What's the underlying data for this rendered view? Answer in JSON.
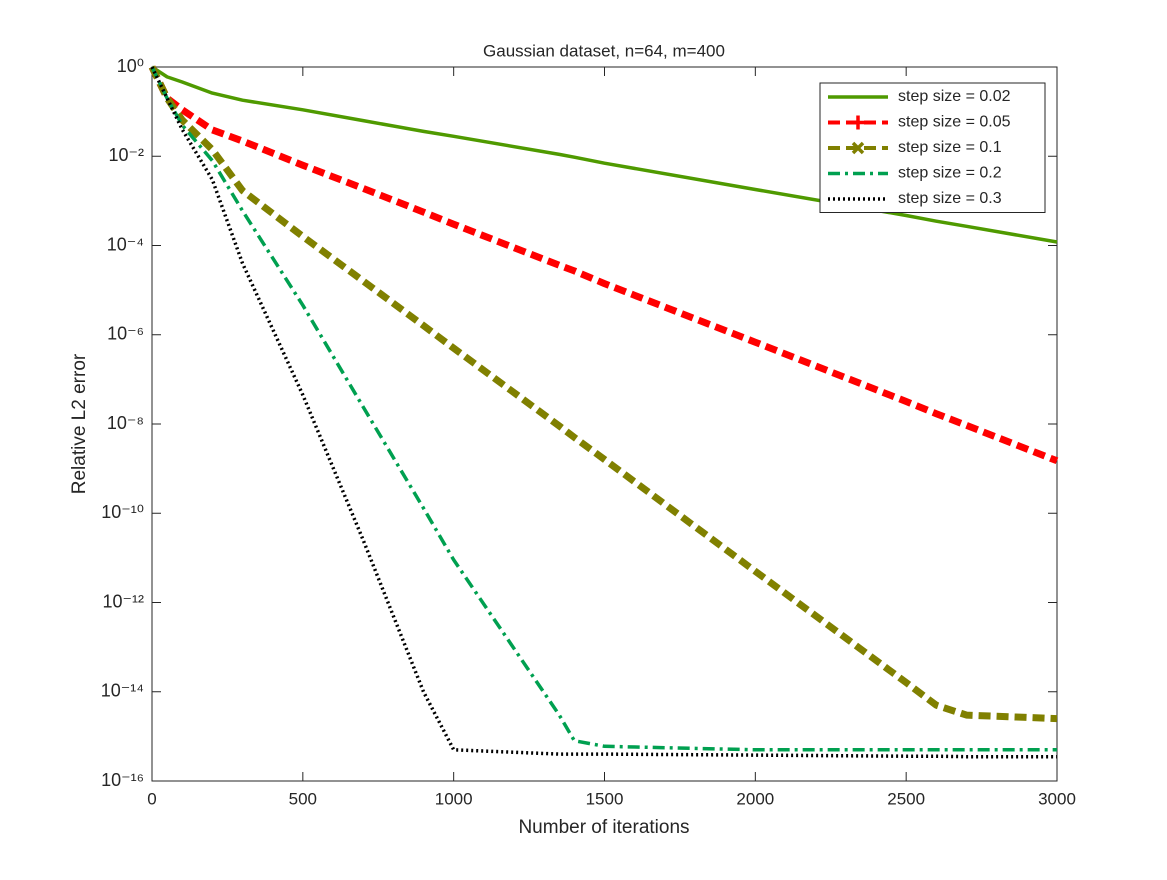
{
  "chart_data": {
    "type": "line",
    "title": "Gaussian dataset, n=64, m=400",
    "x_label": "Number of iterations",
    "y_label": "Relative L2 error",
    "yscale": "log",
    "legend": "upper right",
    "x": [
      0,
      50,
      100,
      200,
      300,
      500,
      700,
      900,
      1000,
      1350,
      1400,
      1500,
      2000,
      2500,
      2600,
      2700,
      3000
    ],
    "xlim": [
      0,
      3000
    ],
    "xticks": [
      0,
      500,
      1000,
      1500,
      2000,
      2500,
      3000
    ],
    "ylim": [
      1e-16,
      1
    ],
    "yticks": [
      {
        "value": 1,
        "label": "10⁰"
      },
      {
        "value": 0.01,
        "label": "10⁻²"
      },
      {
        "value": 0.0001,
        "label": "10⁻⁴"
      },
      {
        "value": 1e-06,
        "label": "10⁻⁶"
      },
      {
        "value": 1e-08,
        "label": "10⁻⁸"
      },
      {
        "value": 1e-10,
        "label": "10⁻¹⁰"
      },
      {
        "value": 1e-12,
        "label": "10⁻¹²"
      },
      {
        "value": 1e-14,
        "label": "10⁻¹⁴"
      },
      {
        "value": 1e-16,
        "label": "10⁻¹⁶"
      }
    ],
    "series": [
      {
        "name": "step size = 0.02",
        "color": "#4f9a00",
        "style": "solid",
        "values": [
          1,
          0.6,
          0.46,
          0.26,
          0.18,
          0.11,
          0.063,
          0.036,
          0.028,
          0.011,
          0.0095,
          0.007,
          0.0018,
          0.00047,
          0.00035,
          0.00027,
          0.00012
        ]
      },
      {
        "name": "step size = 0.05",
        "color": "#ff0000",
        "style": "dashed",
        "marker": "+",
        "values": [
          1,
          0.2,
          0.11,
          0.039,
          0.022,
          0.0063,
          0.0019,
          0.00056,
          0.0003,
          3.6e-05,
          2.7e-05,
          1.4e-05,
          6.8e-07,
          3.2e-08,
          1.7e-08,
          9.3e-09,
          1.5e-09
        ]
      },
      {
        "name": "step size = 0.1",
        "color": "#808000",
        "style": "dashed",
        "marker": "x",
        "values": [
          1,
          0.2,
          0.065,
          0.014,
          0.0017,
          0.00016,
          1.6e-05,
          1.6e-06,
          5e-07,
          9e-09,
          5e-09,
          1.6e-09,
          5e-12,
          1.6e-14,
          5e-15,
          3e-15,
          2.5e-15
        ]
      },
      {
        "name": "step size = 0.2",
        "color": "#00a050",
        "style": "dashdot",
        "values": [
          1,
          0.2,
          0.05,
          0.008,
          0.0006,
          4.6e-06,
          2.4e-08,
          1.3e-10,
          9e-12,
          3e-15,
          8e-16,
          6e-16,
          5e-16,
          5e-16,
          5e-16,
          5e-16,
          5e-16
        ]
      },
      {
        "name": "step size = 0.3",
        "color": "#000000",
        "style": "dotted",
        "values": [
          1,
          0.2,
          0.04,
          0.003,
          4e-05,
          4.5e-08,
          2.5e-11,
          1e-14,
          5e-16,
          4e-16,
          4e-16,
          4e-16,
          3.8e-16,
          3.6e-16,
          3.6e-16,
          3.5e-16,
          3.5e-16
        ]
      }
    ]
  }
}
